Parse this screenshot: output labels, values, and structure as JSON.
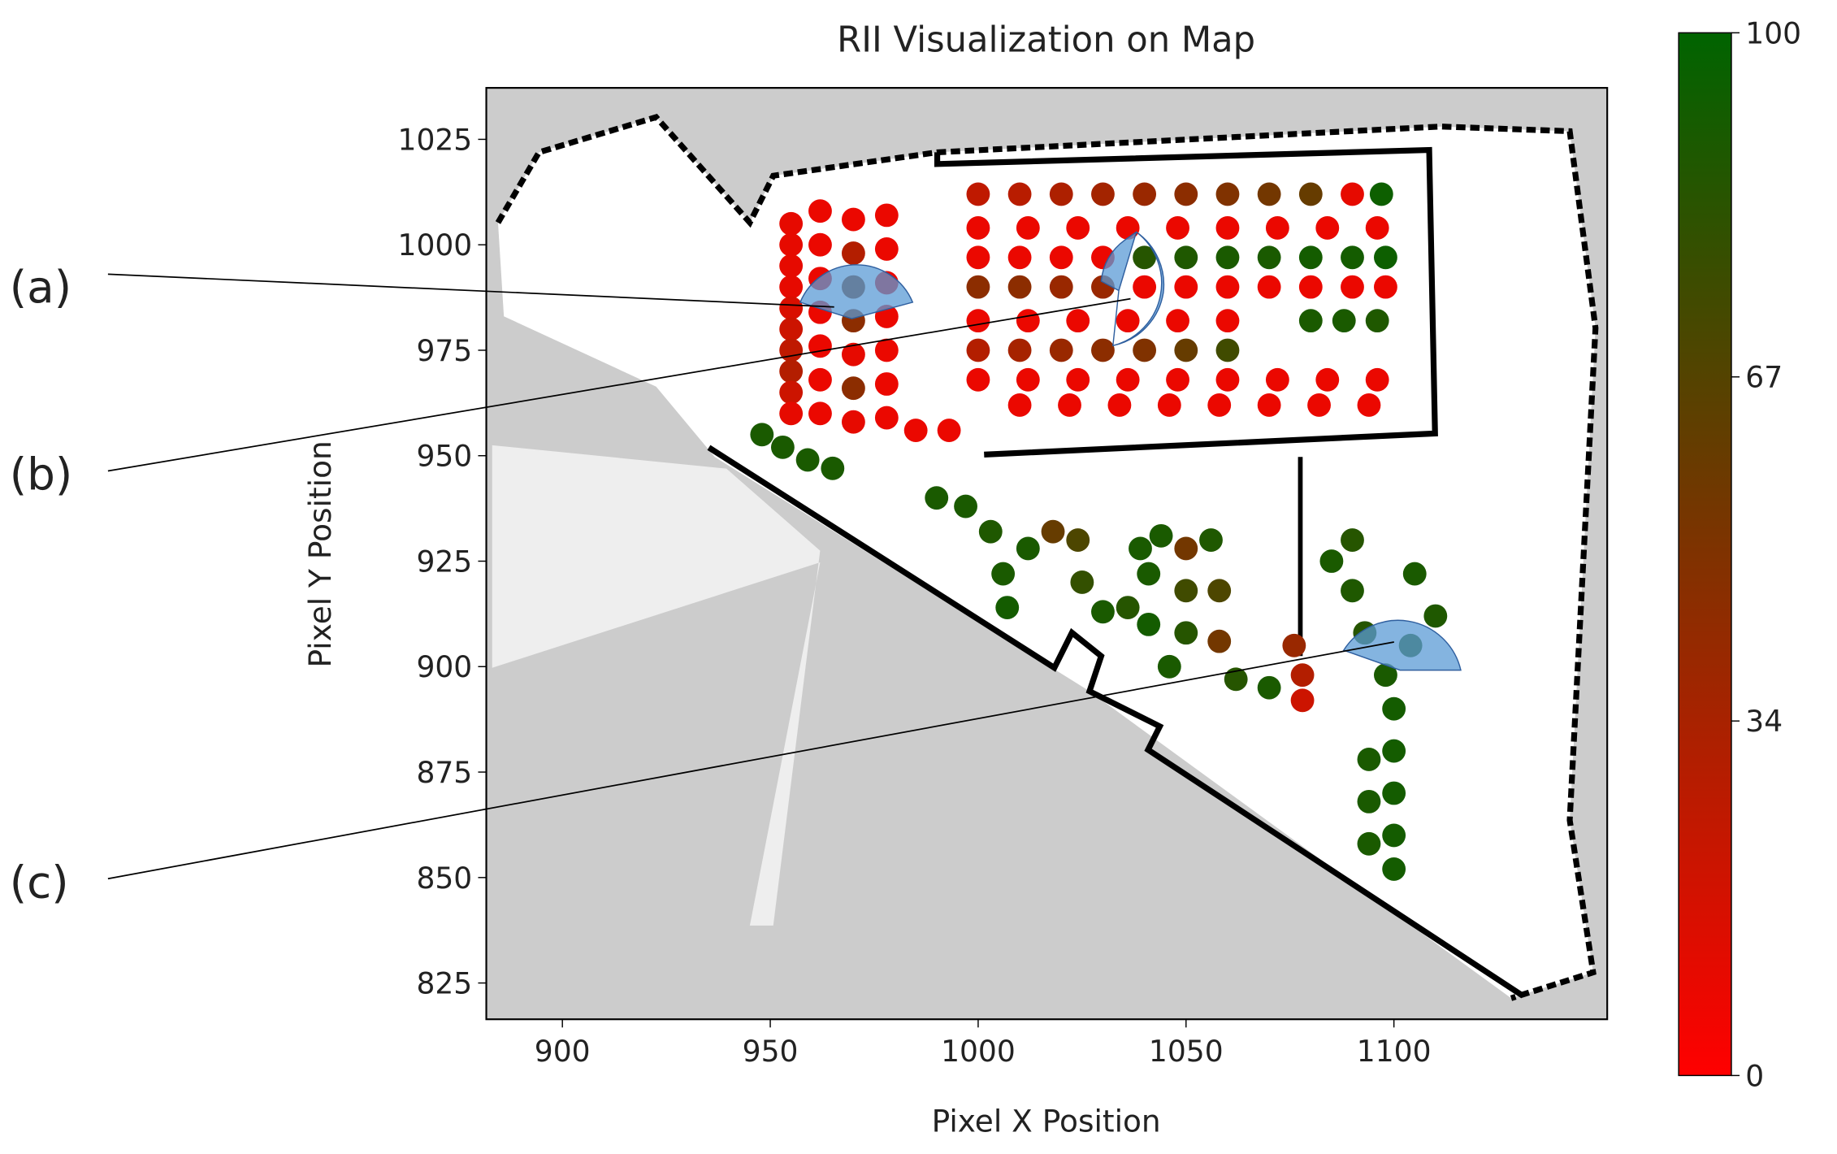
{
  "chart_data": {
    "type": "scatter",
    "title": "RII Visualization on Map",
    "x_label": "Pixel X Position",
    "y_label": "Pixel Y Position",
    "xlim": [
      881.7,
      1151.3
    ],
    "ylim": [
      816.4,
      1037.2
    ],
    "xticks": [
      900,
      950,
      1000,
      1050,
      1100
    ],
    "yticks": [
      825,
      850,
      875,
      900,
      925,
      950,
      975,
      1000,
      1025
    ],
    "clim": [
      0,
      100
    ],
    "cticks": [
      0,
      34,
      67,
      100
    ],
    "colormap": [
      "#ff0000",
      "#006400"
    ],
    "annotations": [
      "(a)",
      "(b)",
      "(c)"
    ],
    "x": [
      955,
      955,
      955,
      955,
      955,
      955,
      955,
      955,
      955,
      955,
      962,
      962,
      962,
      962,
      962,
      962,
      962,
      970,
      970,
      970,
      970,
      970,
      970,
      970,
      978,
      978,
      978,
      978,
      978,
      978,
      978,
      985,
      993,
      1000,
      1010,
      1020,
      1030,
      1040,
      1050,
      1060,
      1070,
      1080,
      1090,
      1097,
      1000,
      1012,
      1024,
      1036,
      1048,
      1060,
      1072,
      1084,
      1096,
      1000,
      1010,
      1020,
      1030,
      1040,
      1050,
      1060,
      1070,
      1080,
      1090,
      1098,
      1000,
      1010,
      1020,
      1030,
      1040,
      1050,
      1060,
      1070,
      1080,
      1090,
      1098,
      1000,
      1012,
      1024,
      1036,
      1048,
      1060,
      1080,
      1088,
      1096,
      1000,
      1010,
      1020,
      1030,
      1040,
      1050,
      1060,
      1000,
      1012,
      1024,
      1036,
      1048,
      1060,
      1072,
      1084,
      1096,
      1010,
      1022,
      1034,
      1046,
      1058,
      1070,
      1082,
      1094,
      948,
      953,
      959,
      965,
      990,
      997,
      1003,
      1006,
      1007,
      1012,
      1018,
      1024,
      1025,
      1030,
      1036,
      1039,
      1044,
      1050,
      1050,
      1050,
      1046,
      1041,
      1041,
      1056,
      1058,
      1058,
      1062,
      1070,
      1076,
      1078,
      1078,
      1085,
      1090,
      1093,
      1098,
      1100,
      1100,
      1100,
      1100,
      1100,
      1094,
      1094,
      1094,
      1105,
      1110,
      1104,
      1090
    ],
    "y": [
      1005,
      1000,
      995,
      990,
      985,
      980,
      975,
      970,
      965,
      960,
      1008,
      1000,
      992,
      984,
      976,
      968,
      960,
      1006,
      998,
      990,
      982,
      974,
      966,
      958,
      1007,
      999,
      991,
      983,
      975,
      967,
      959,
      956,
      956,
      1012,
      1012,
      1012,
      1012,
      1012,
      1012,
      1012,
      1012,
      1012,
      1012,
      1012,
      1004,
      1004,
      1004,
      1004,
      1004,
      1004,
      1004,
      1004,
      1004,
      997,
      997,
      997,
      997,
      997,
      997,
      997,
      997,
      997,
      997,
      997,
      990,
      990,
      990,
      990,
      990,
      990,
      990,
      990,
      990,
      990,
      990,
      982,
      982,
      982,
      982,
      982,
      982,
      982,
      982,
      982,
      975,
      975,
      975,
      975,
      975,
      975,
      975,
      968,
      968,
      968,
      968,
      968,
      968,
      968,
      968,
      968,
      962,
      962,
      962,
      962,
      962,
      962,
      962,
      962,
      955,
      952,
      949,
      947,
      940,
      938,
      932,
      922,
      914,
      928,
      932,
      930,
      920,
      913,
      914,
      928,
      931,
      928,
      918,
      908,
      900,
      910,
      922,
      930,
      918,
      906,
      897,
      895,
      905,
      898,
      892,
      925,
      918,
      908,
      898,
      890,
      880,
      870,
      860,
      852,
      858,
      868,
      878,
      922,
      912,
      905,
      930
    ],
    "values": [
      10,
      10,
      10,
      10,
      15,
      20,
      25,
      30,
      20,
      10,
      8,
      8,
      8,
      8,
      8,
      8,
      8,
      8,
      30,
      50,
      45,
      10,
      45,
      10,
      8,
      8,
      8,
      8,
      8,
      8,
      8,
      8,
      8,
      25,
      28,
      32,
      36,
      40,
      45,
      50,
      55,
      60,
      10,
      95,
      8,
      8,
      8,
      8,
      8,
      8,
      8,
      8,
      8,
      8,
      8,
      8,
      8,
      85,
      88,
      90,
      90,
      92,
      92,
      95,
      45,
      45,
      40,
      40,
      8,
      8,
      8,
      8,
      8,
      8,
      8,
      8,
      8,
      8,
      8,
      8,
      8,
      90,
      90,
      88,
      30,
      35,
      40,
      45,
      50,
      60,
      75,
      8,
      8,
      8,
      8,
      8,
      8,
      8,
      8,
      8,
      8,
      8,
      8,
      8,
      8,
      8,
      8,
      8,
      90,
      90,
      90,
      90,
      90,
      90,
      88,
      90,
      92,
      90,
      60,
      70,
      80,
      90,
      85,
      90,
      90,
      55,
      75,
      85,
      90,
      92,
      90,
      88,
      70,
      55,
      85,
      90,
      40,
      30,
      20,
      90,
      88,
      85,
      90,
      92,
      92,
      92,
      92,
      92,
      90,
      90,
      90,
      90,
      88,
      85,
      85
    ]
  }
}
